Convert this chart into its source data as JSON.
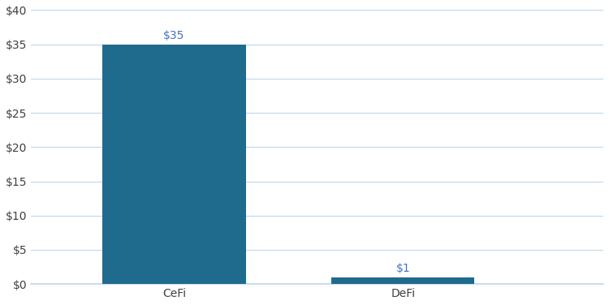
{
  "categories": [
    "CeFi",
    "DeFi"
  ],
  "values": [
    35,
    1
  ],
  "bar_color": "#1F6B8E",
  "bar_labels": [
    "$35",
    "$1"
  ],
  "ylim": [
    0,
    40
  ],
  "yticks": [
    0,
    5,
    10,
    15,
    20,
    25,
    30,
    35,
    40
  ],
  "ytick_labels": [
    "$0",
    "$5",
    "$10",
    "$15",
    "$20",
    "$25",
    "$30",
    "$35",
    "$40"
  ],
  "bar_width": 0.25,
  "background_color": "#ffffff",
  "label_color": "#4472C4",
  "tick_color": "#404040",
  "axis_line_color": "#BDD7EE",
  "label_fontsize": 10,
  "tick_fontsize": 10,
  "x_positions": [
    0.25,
    0.65
  ],
  "xlim": [
    0.0,
    1.0
  ]
}
